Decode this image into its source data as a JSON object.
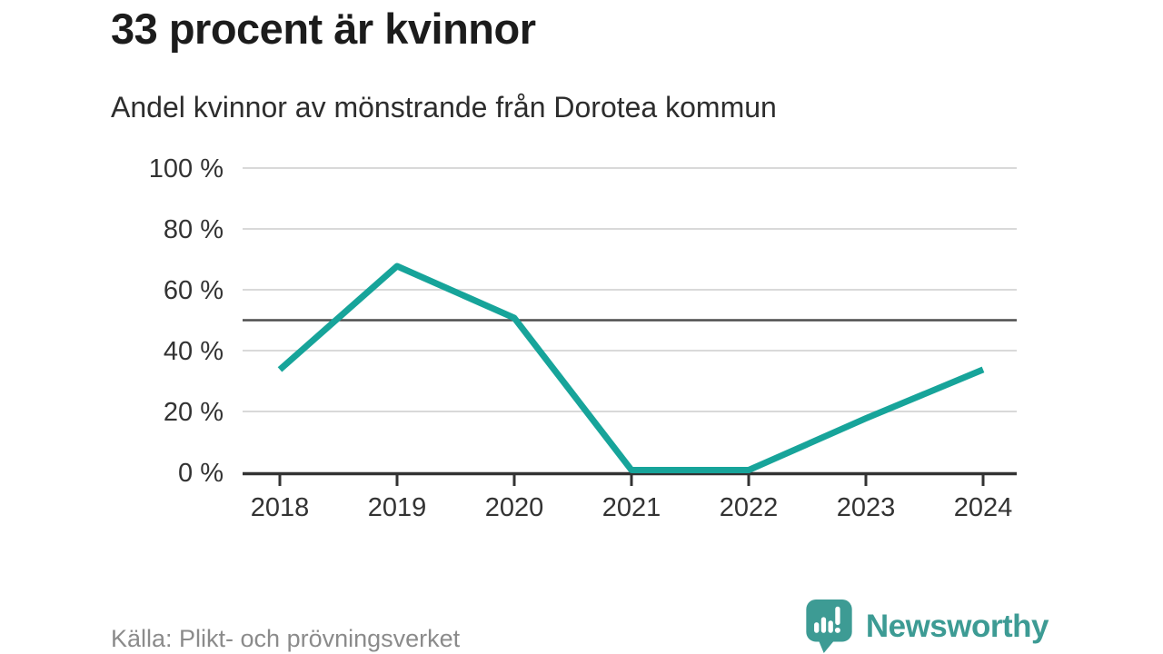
{
  "header": {
    "title": "33 procent är kvinnor",
    "subtitle": "Andel kvinnor av mönstrande från Dorotea kommun"
  },
  "chart_data": {
    "type": "line",
    "title": "33 procent är kvinnor",
    "subtitle": "Andel kvinnor av mönstrande från Dorotea kommun",
    "x": [
      2018,
      2019,
      2020,
      2021,
      2022,
      2023,
      2024
    ],
    "series": [
      {
        "name": "Andel kvinnor av mönstrande",
        "values": [
          33,
          67,
          50,
          0,
          0,
          17,
          33
        ]
      }
    ],
    "xlabel": "",
    "ylabel": "",
    "ylim": [
      0,
      100
    ],
    "yticks": [
      0,
      20,
      40,
      60,
      80,
      100
    ],
    "ytick_format": "{v} %",
    "reference_line": 50,
    "grid": true,
    "legend": "none",
    "colors": {
      "line": "#17a49a",
      "grid": "#d9d9d9",
      "reference": "#4e4e4e",
      "axis": "#333333",
      "tick_text": "#333333"
    }
  },
  "footer": {
    "source": "Källa: Plikt- och prövningsverket",
    "brand": "Newsworthy",
    "brand_color": "#3d9b94"
  }
}
